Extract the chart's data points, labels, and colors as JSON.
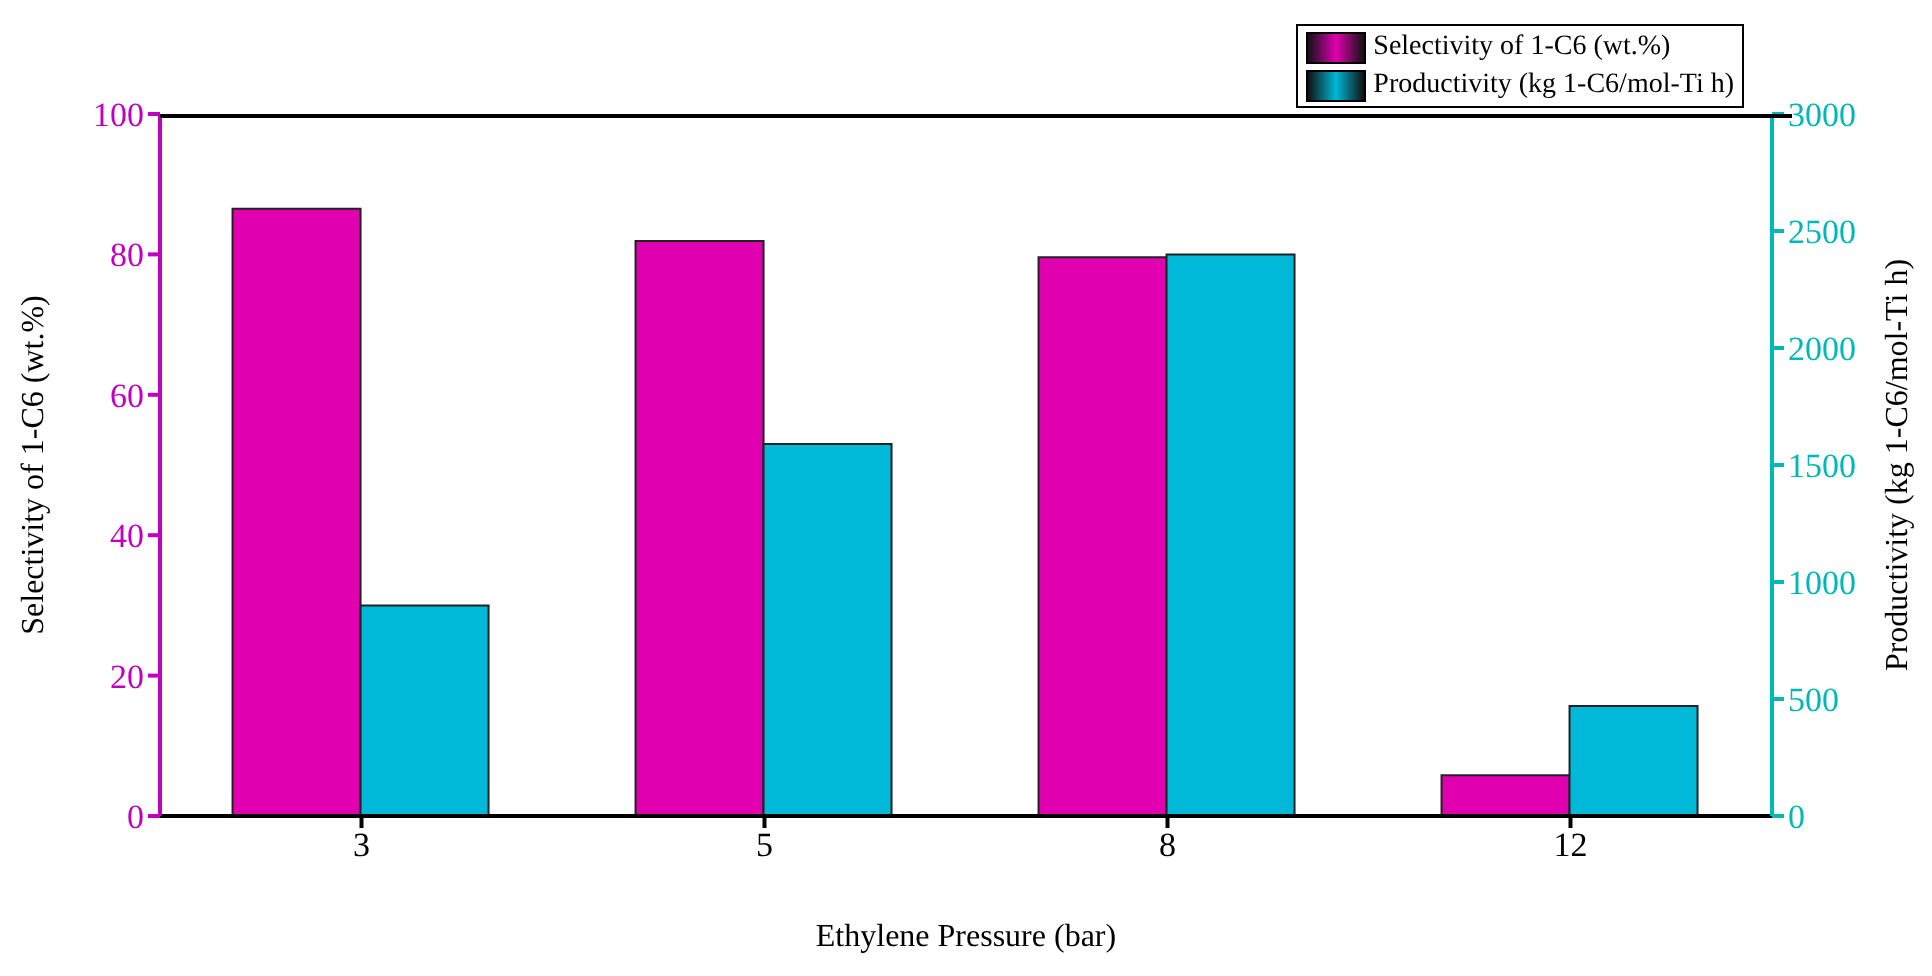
{
  "chart_data": {
    "type": "bar",
    "xlabel": "Ethylene Pressure (bar)",
    "ylabel": "Selectivity of 1-C6 (wt.%)",
    "y2label": "Productivity (kg 1-C6/mol-Ti h)",
    "categories": [
      "3",
      "5",
      "8",
      "12"
    ],
    "series": [
      {
        "name": "Selectivity of 1-C6 (wt.%)",
        "color": "#e000b0",
        "values": [
          86.5,
          81.9,
          79.6,
          5.8
        ]
      },
      {
        "name": "Productivity (kg 1-C6/mol-Ti h)",
        "color": "#00b8d8",
        "axis": "y2",
        "values": [
          900,
          1590,
          2400,
          470
        ]
      }
    ],
    "ylim": [
      0,
      100
    ],
    "yticks": [
      0,
      20,
      40,
      60,
      80,
      100
    ],
    "y2lim": [
      0,
      3000
    ],
    "y2ticks": [
      0,
      500,
      1000,
      1500,
      2000,
      2500,
      3000
    ],
    "grid": false,
    "legend": "top right"
  }
}
